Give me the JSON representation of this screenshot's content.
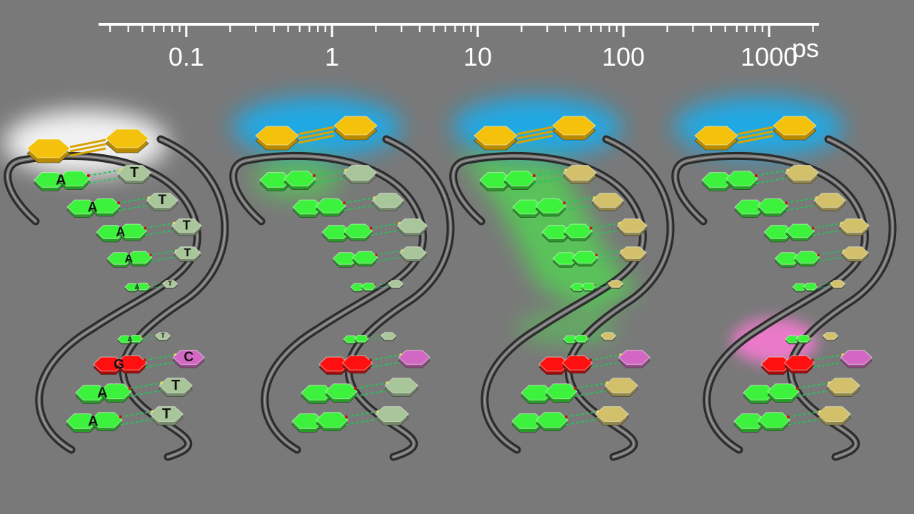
{
  "time_axis": {
    "unit": "ps",
    "scale": "log",
    "range": [
      0.025,
      2200
    ],
    "labels": [
      {
        "value": 0.1,
        "text": "0.1"
      },
      {
        "value": 1,
        "text": "1"
      },
      {
        "value": 10,
        "text": "10"
      },
      {
        "value": 100,
        "text": "100"
      },
      {
        "value": 1000,
        "text": "1000"
      }
    ]
  },
  "colors": {
    "background": "#797979",
    "axis": "#ffffff",
    "linker": "#f4c20d",
    "adenine": "#3cf23c",
    "thymine_pale": "#a9c59a",
    "thymine_gold": "#d2c06a",
    "guanine": "#ff1010",
    "cytosine": "#d368c4",
    "glow_white": "#ffffff",
    "glow_blue": "#16aef0",
    "glow_green": "#40ff40",
    "glow_pink": "#ff7ad8"
  },
  "panels": [
    {
      "id": "panel-1",
      "glows": [
        "white"
      ],
      "top_rungs": [
        {
          "left": "A",
          "right": "T"
        },
        {
          "left": "A",
          "right": "T"
        },
        {
          "left": "A",
          "right": "T"
        },
        {
          "left": "A",
          "right": "T"
        },
        {
          "left": "A",
          "right": "T"
        }
      ],
      "bottom_rungs": [
        {
          "left": "A",
          "right": "T"
        },
        {
          "left": "G",
          "right": "C"
        },
        {
          "left": "A",
          "right": "T"
        },
        {
          "left": "A",
          "right": "T"
        }
      ]
    },
    {
      "id": "panel-2",
      "glows": [
        "blue",
        "green-small"
      ]
    },
    {
      "id": "panel-3",
      "glows": [
        "blue",
        "green-large"
      ]
    },
    {
      "id": "panel-4",
      "glows": [
        "blue",
        "pink"
      ]
    }
  ]
}
